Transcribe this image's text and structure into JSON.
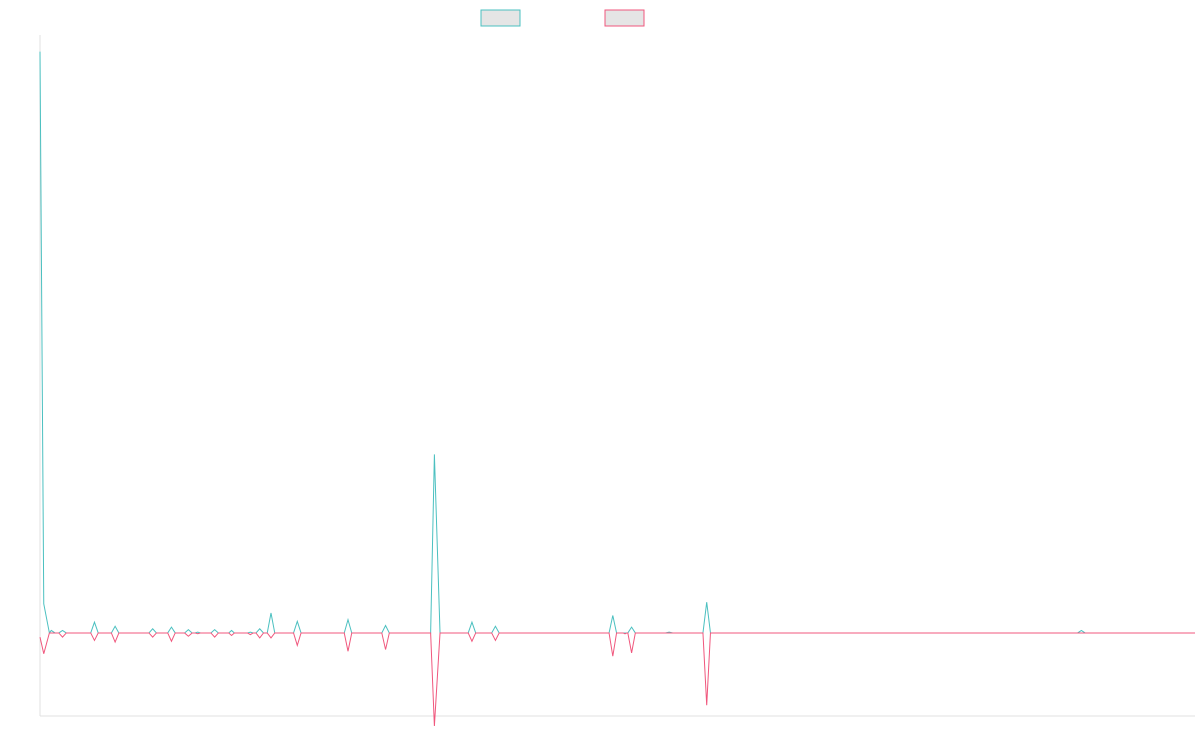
{
  "chart_data": {
    "type": "line",
    "title": "",
    "xlabel": "",
    "ylabel": "",
    "grid": false,
    "legend_position": "top-center",
    "ylim": [
      -100,
      720
    ],
    "xlim": [
      0,
      123
    ],
    "series": [
      {
        "color": "#4bc0c0",
        "legend_fill": "#e5e5e5",
        "points": [
          [
            0,
            700
          ],
          [
            0.4,
            35
          ],
          [
            1,
            0
          ],
          [
            1.2,
            3
          ],
          [
            1.6,
            0
          ],
          [
            2,
            0
          ],
          [
            2.4,
            3
          ],
          [
            2.8,
            0
          ],
          [
            5.4,
            0
          ],
          [
            5.8,
            13
          ],
          [
            6.2,
            0
          ],
          [
            7.6,
            0
          ],
          [
            8,
            8
          ],
          [
            8.4,
            0
          ],
          [
            11.6,
            0
          ],
          [
            12,
            5
          ],
          [
            12.4,
            0
          ],
          [
            13.6,
            0
          ],
          [
            14,
            7
          ],
          [
            14.4,
            0
          ],
          [
            15.4,
            0
          ],
          [
            15.8,
            4
          ],
          [
            16.2,
            0
          ],
          [
            16.5,
            0
          ],
          [
            16.8,
            1
          ],
          [
            17.1,
            0
          ],
          [
            18.2,
            0
          ],
          [
            18.6,
            4
          ],
          [
            19,
            0
          ],
          [
            20.1,
            0
          ],
          [
            20.4,
            3
          ],
          [
            20.7,
            0
          ],
          [
            22.1,
            0
          ],
          [
            22.4,
            1
          ],
          [
            22.7,
            0
          ],
          [
            23,
            0
          ],
          [
            23.4,
            5
          ],
          [
            23.8,
            0
          ],
          [
            24.2,
            0
          ],
          [
            24.6,
            24
          ],
          [
            25,
            0
          ],
          [
            27,
            0
          ],
          [
            27.4,
            14
          ],
          [
            27.8,
            0
          ],
          [
            32.4,
            0
          ],
          [
            32.8,
            16
          ],
          [
            33.2,
            0
          ],
          [
            36.4,
            0
          ],
          [
            36.8,
            9
          ],
          [
            37.2,
            0
          ],
          [
            41.6,
            0
          ],
          [
            42,
            215
          ],
          [
            42.6,
            0
          ],
          [
            45.6,
            0
          ],
          [
            46,
            13
          ],
          [
            46.4,
            0
          ],
          [
            48.1,
            0
          ],
          [
            48.5,
            8
          ],
          [
            48.9,
            0
          ],
          [
            60.6,
            0
          ],
          [
            61,
            21
          ],
          [
            61.4,
            0
          ],
          [
            62.1,
            0
          ],
          [
            62.3,
            0
          ],
          [
            62.5,
            0
          ],
          [
            62.6,
            0
          ],
          [
            63,
            7
          ],
          [
            63.4,
            0
          ],
          [
            66.6,
            0
          ],
          [
            67,
            1
          ],
          [
            67.4,
            0
          ],
          [
            70.6,
            0
          ],
          [
            71,
            37
          ],
          [
            71.4,
            0
          ],
          [
            110.5,
            0
          ],
          [
            110.9,
            3
          ],
          [
            111.3,
            0
          ],
          [
            123,
            0
          ]
        ]
      },
      {
        "color": "#f0577d",
        "legend_fill": "#e5e5e5",
        "points": [
          [
            0,
            -5
          ],
          [
            0.4,
            -25
          ],
          [
            1,
            0
          ],
          [
            1.6,
            0
          ],
          [
            2,
            0
          ],
          [
            2.4,
            -5
          ],
          [
            2.8,
            0
          ],
          [
            5.4,
            0
          ],
          [
            5.8,
            -9
          ],
          [
            6.2,
            0
          ],
          [
            7.6,
            0
          ],
          [
            8,
            -11
          ],
          [
            8.4,
            0
          ],
          [
            11.6,
            0
          ],
          [
            12,
            -5
          ],
          [
            12.4,
            0
          ],
          [
            13.6,
            0
          ],
          [
            14,
            -10
          ],
          [
            14.4,
            0
          ],
          [
            15.4,
            0
          ],
          [
            15.8,
            -4
          ],
          [
            16.2,
            0
          ],
          [
            16.5,
            0
          ],
          [
            16.8,
            -1
          ],
          [
            17.1,
            0
          ],
          [
            18.2,
            0
          ],
          [
            18.6,
            -5
          ],
          [
            19,
            0
          ],
          [
            20.1,
            0
          ],
          [
            20.4,
            -3
          ],
          [
            20.7,
            0
          ],
          [
            22.1,
            0
          ],
          [
            22.4,
            -2
          ],
          [
            22.7,
            0
          ],
          [
            23,
            0
          ],
          [
            23.4,
            -6
          ],
          [
            23.8,
            0
          ],
          [
            24.2,
            0
          ],
          [
            24.6,
            -6
          ],
          [
            25,
            0
          ],
          [
            27,
            0
          ],
          [
            27.4,
            -15
          ],
          [
            27.8,
            0
          ],
          [
            32.4,
            0
          ],
          [
            32.8,
            -22
          ],
          [
            33.2,
            0
          ],
          [
            36.4,
            0
          ],
          [
            36.8,
            -20
          ],
          [
            37.2,
            0
          ],
          [
            41.6,
            0
          ],
          [
            42,
            -112
          ],
          [
            42.6,
            0
          ],
          [
            45.6,
            0
          ],
          [
            46,
            -10
          ],
          [
            46.4,
            0
          ],
          [
            48.1,
            0
          ],
          [
            48.5,
            -9
          ],
          [
            48.9,
            0
          ],
          [
            60.6,
            0
          ],
          [
            61,
            -28
          ],
          [
            61.4,
            0
          ],
          [
            62.1,
            0
          ],
          [
            62.3,
            -1
          ],
          [
            62.5,
            0
          ],
          [
            62.6,
            0
          ],
          [
            63,
            -24
          ],
          [
            63.4,
            0
          ],
          [
            66.6,
            0
          ],
          [
            67,
            0
          ],
          [
            67.4,
            0
          ],
          [
            70.6,
            0
          ],
          [
            71,
            -87
          ],
          [
            71.4,
            0
          ],
          [
            110.5,
            0
          ],
          [
            110.9,
            0
          ],
          [
            111.3,
            0
          ],
          [
            123,
            0
          ]
        ]
      }
    ]
  }
}
